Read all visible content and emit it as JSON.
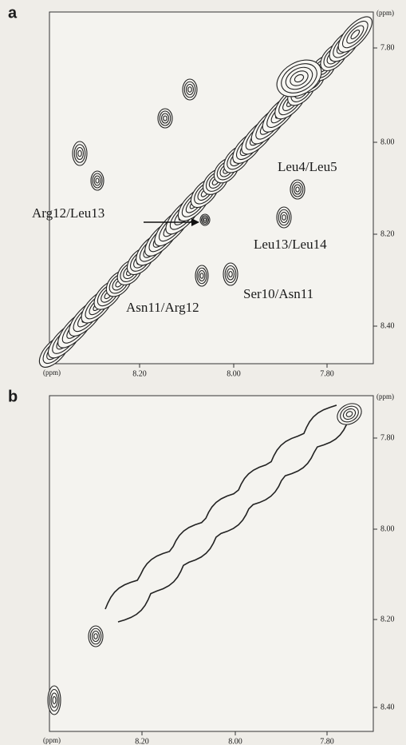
{
  "panels": [
    {
      "label": "a",
      "unit": "(ppm)",
      "x_ticks": [
        "8.20",
        "8.00",
        "7.80"
      ],
      "y_ticks": [
        "7.80",
        "8.00",
        "8.20",
        "8.40"
      ],
      "annotations": [
        "Leu4/Leu5",
        "Arg12/Leu13",
        "Leu13/Leu14",
        "Ser10/Asn11",
        "Asn11/Arg12"
      ]
    },
    {
      "label": "b",
      "unit": "(ppm)",
      "x_ticks": [
        "8.20",
        "8.00",
        "7.80"
      ],
      "y_ticks": [
        "7.80",
        "8.00",
        "8.20",
        "8.40"
      ]
    }
  ]
}
